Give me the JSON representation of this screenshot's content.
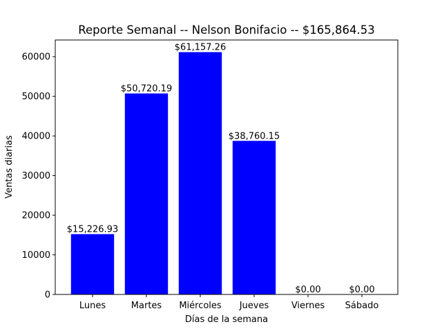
{
  "chart_data": {
    "type": "bar",
    "title": "Reporte Semanal -- Nelson Bonifacio -- $165,864.53",
    "xlabel": "Días de la semana",
    "ylabel": "Ventas diarias",
    "categories": [
      "Lunes",
      "Martes",
      "Miércoles",
      "Jueves",
      "Viernes",
      "Sábado"
    ],
    "values": [
      15226.93,
      50720.19,
      61157.26,
      38760.15,
      0,
      0
    ],
    "data_labels": [
      "$15,226.93",
      "$50,720.19",
      "$61,157.26",
      "$38,760.15",
      "$0.00",
      "$0.00"
    ],
    "ylim": [
      0,
      64215
    ],
    "yticks": [
      0,
      10000,
      20000,
      30000,
      40000,
      50000,
      60000
    ],
    "bar_color": "#0000ff",
    "grid": false,
    "legend": false
  }
}
